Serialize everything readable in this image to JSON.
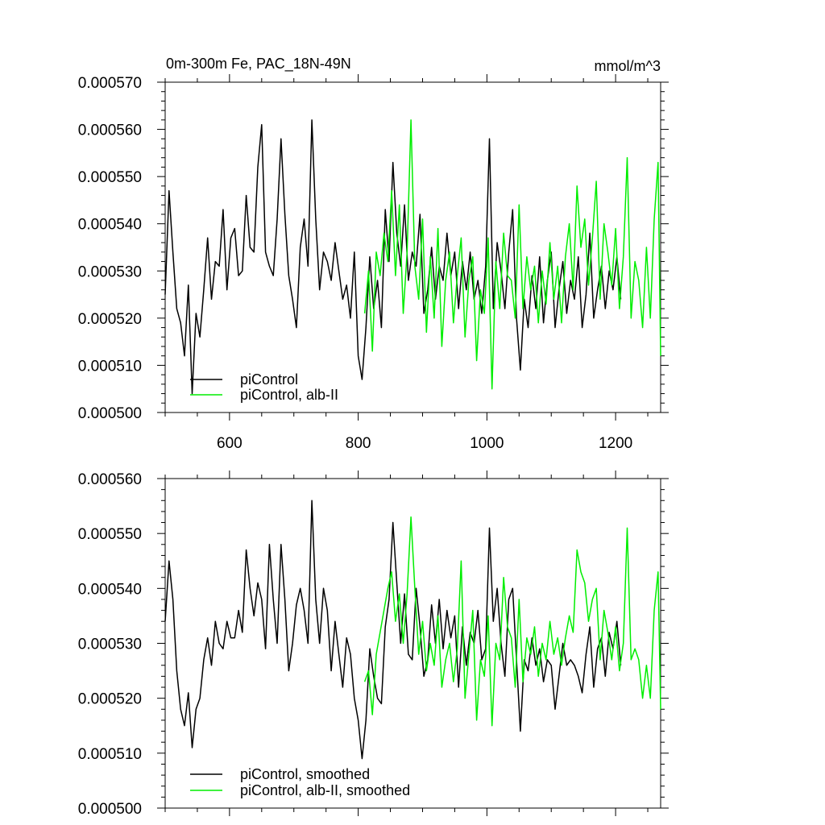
{
  "chart_data": [
    {
      "type": "line",
      "title": "0m-300m Fe, PAC_18N-49N",
      "units": "mmol/m^3",
      "xlim": [
        500,
        1270
      ],
      "ylim": [
        0.0005,
        0.00057
      ],
      "xticks": [
        600,
        800,
        1000,
        1200
      ],
      "xtick_labels": [
        "600",
        "800",
        "1000",
        "1200"
      ],
      "yticks": [
        0.0005,
        0.00051,
        0.00052,
        0.00053,
        0.00054,
        0.00055,
        0.00056,
        0.00057
      ],
      "ytick_labels": [
        "0.000500",
        "0.000510",
        "0.000520",
        "0.000530",
        "0.000540",
        "0.000550",
        "0.000560",
        "0.000570"
      ],
      "legend_position": "bottom-left",
      "series": [
        {
          "name": "piControl",
          "color": "#000000",
          "x": [
            500,
            506,
            512,
            518,
            524,
            530,
            536,
            542,
            548,
            554,
            560,
            566,
            572,
            578,
            584,
            590,
            596,
            602,
            608,
            614,
            620,
            626,
            632,
            638,
            644,
            650,
            656,
            662,
            668,
            674,
            680,
            686,
            692,
            698,
            704,
            710,
            716,
            722,
            728,
            734,
            740,
            746,
            752,
            758,
            764,
            770,
            776,
            782,
            788,
            794,
            800,
            806,
            812,
            818,
            824,
            830,
            836,
            842,
            848,
            854,
            860,
            866,
            872,
            878,
            884,
            890,
            896,
            902,
            908,
            914,
            920,
            926,
            932,
            938,
            944,
            950,
            956,
            962,
            968,
            974,
            980,
            986,
            992,
            998,
            1004,
            1010,
            1016,
            1022,
            1028,
            1034,
            1040,
            1046,
            1052,
            1058,
            1064,
            1070,
            1076,
            1082,
            1088,
            1094,
            1100,
            1106,
            1112,
            1118,
            1124,
            1130,
            1136,
            1142,
            1148,
            1154,
            1160,
            1166,
            1172,
            1178,
            1184,
            1190,
            1196,
            1202,
            1208
          ],
          "y": [
            0.000525,
            0.000547,
            0.000534,
            0.000522,
            0.000519,
            0.000512,
            0.000527,
            0.000504,
            0.000521,
            0.000516,
            0.000526,
            0.000537,
            0.000524,
            0.000532,
            0.000531,
            0.000543,
            0.000526,
            0.000537,
            0.000539,
            0.000529,
            0.00053,
            0.000546,
            0.000535,
            0.000534,
            0.000552,
            0.000561,
            0.000534,
            0.000531,
            0.000529,
            0.000541,
            0.000558,
            0.000542,
            0.000529,
            0.000524,
            0.000518,
            0.000535,
            0.000541,
            0.000531,
            0.000562,
            0.000541,
            0.000526,
            0.000534,
            0.000532,
            0.000528,
            0.000536,
            0.00053,
            0.000524,
            0.000527,
            0.00052,
            0.000534,
            0.000512,
            0.000507,
            0.000518,
            0.000533,
            0.000522,
            0.000528,
            0.000518,
            0.000543,
            0.000532,
            0.000553,
            0.000538,
            0.000531,
            0.000544,
            0.000528,
            0.000534,
            0.000531,
            0.000542,
            0.000521,
            0.000526,
            0.000535,
            0.000524,
            0.000531,
            0.000528,
            0.000538,
            0.000529,
            0.000534,
            0.000522,
            0.000532,
            0.000526,
            0.000534,
            0.000524,
            0.000528,
            0.000521,
            0.000531,
            0.000558,
            0.000522,
            0.000536,
            0.00053,
            0.000522,
            0.000534,
            0.000543,
            0.00052,
            0.000509,
            0.000524,
            0.000518,
            0.000529,
            0.000522,
            0.000533,
            0.000519,
            0.000528,
            0.000534,
            0.000518,
            0.000526,
            0.000532,
            0.000521,
            0.000528,
            0.000524,
            0.000533,
            0.000518,
            0.000525,
            0.000538,
            0.00052,
            0.000526,
            0.000531,
            0.000522,
            0.00053,
            0.000526,
            0.000533,
            0.000524
          ]
        },
        {
          "name": "piControl, alb-II",
          "color": "#00ee00",
          "x": [
            810,
            816,
            822,
            828,
            834,
            840,
            846,
            852,
            858,
            864,
            870,
            876,
            882,
            888,
            894,
            900,
            906,
            912,
            918,
            924,
            930,
            936,
            942,
            948,
            954,
            960,
            966,
            972,
            978,
            984,
            990,
            996,
            1002,
            1008,
            1014,
            1020,
            1026,
            1032,
            1038,
            1044,
            1050,
            1056,
            1062,
            1068,
            1074,
            1080,
            1086,
            1092,
            1098,
            1104,
            1110,
            1116,
            1122,
            1128,
            1134,
            1140,
            1146,
            1152,
            1158,
            1164,
            1170,
            1176,
            1182,
            1188,
            1194,
            1200,
            1206,
            1212,
            1218,
            1224,
            1230,
            1236,
            1242,
            1248,
            1254,
            1260,
            1266,
            1270
          ],
          "y": [
            0.000521,
            0.00053,
            0.000513,
            0.000534,
            0.000529,
            0.000538,
            0.000532,
            0.000547,
            0.000529,
            0.000544,
            0.000521,
            0.000534,
            0.000562,
            0.000531,
            0.000524,
            0.000541,
            0.000517,
            0.000533,
            0.00052,
            0.000539,
            0.000514,
            0.000528,
            0.000534,
            0.000519,
            0.000529,
            0.000537,
            0.000516,
            0.000528,
            0.000533,
            0.000511,
            0.000526,
            0.000521,
            0.000537,
            0.000505,
            0.000532,
            0.000522,
            0.000538,
            0.000529,
            0.000528,
            0.00052,
            0.000544,
            0.000522,
            0.000533,
            0.000526,
            0.000531,
            0.000519,
            0.00053,
            0.000523,
            0.000536,
            0.000524,
            0.000531,
            0.000519,
            0.000533,
            0.00054,
            0.000526,
            0.000548,
            0.000535,
            0.000541,
            0.000527,
            0.000537,
            0.000549,
            0.000524,
            0.00054,
            0.000534,
            0.000527,
            0.000539,
            0.000522,
            0.000533,
            0.000554,
            0.00052,
            0.000532,
            0.000528,
            0.000518,
            0.000535,
            0.00052,
            0.000541,
            0.000553,
            0.000512
          ]
        }
      ]
    },
    {
      "type": "line",
      "title": "",
      "xlim": [
        500,
        1270
      ],
      "ylim": [
        0.0005,
        0.00056
      ],
      "xticks": [
        600,
        800,
        1000,
        1200
      ],
      "xtick_labels": [],
      "yticks": [
        0.0005,
        0.00051,
        0.00052,
        0.00053,
        0.00054,
        0.00055,
        0.00056
      ],
      "ytick_labels": [
        "0.000500",
        "0.000510",
        "0.000520",
        "0.000530",
        "0.000540",
        "0.000550",
        "0.000560"
      ],
      "legend_position": "bottom-left",
      "series": [
        {
          "name": "piControl, smoothed",
          "color": "#000000",
          "x": [
            500,
            506,
            512,
            518,
            524,
            530,
            536,
            542,
            548,
            554,
            560,
            566,
            572,
            578,
            584,
            590,
            596,
            602,
            608,
            614,
            620,
            626,
            632,
            638,
            644,
            650,
            656,
            662,
            668,
            674,
            680,
            686,
            692,
            698,
            704,
            710,
            716,
            722,
            728,
            734,
            740,
            746,
            752,
            758,
            764,
            770,
            776,
            782,
            788,
            794,
            800,
            806,
            812,
            818,
            824,
            830,
            836,
            842,
            848,
            854,
            860,
            866,
            872,
            878,
            884,
            890,
            896,
            902,
            908,
            914,
            920,
            926,
            932,
            938,
            944,
            950,
            956,
            962,
            968,
            974,
            980,
            986,
            992,
            998,
            1004,
            1010,
            1016,
            1022,
            1028,
            1034,
            1040,
            1046,
            1052,
            1058,
            1064,
            1070,
            1076,
            1082,
            1088,
            1094,
            1100,
            1106,
            1112,
            1118,
            1124,
            1130,
            1136,
            1142,
            1148,
            1154,
            1160,
            1166,
            1172,
            1178,
            1184,
            1190,
            1196,
            1202,
            1208
          ],
          "y": [
            0.000534,
            0.000545,
            0.000538,
            0.000525,
            0.000518,
            0.000515,
            0.000521,
            0.000511,
            0.000518,
            0.00052,
            0.000527,
            0.000531,
            0.000526,
            0.000534,
            0.00053,
            0.000529,
            0.000534,
            0.000531,
            0.000531,
            0.000536,
            0.000532,
            0.000547,
            0.00054,
            0.000535,
            0.000541,
            0.000538,
            0.000529,
            0.000548,
            0.000538,
            0.00053,
            0.000548,
            0.000538,
            0.000525,
            0.00053,
            0.000537,
            0.00054,
            0.000536,
            0.00053,
            0.000556,
            0.000538,
            0.00053,
            0.00054,
            0.000536,
            0.000525,
            0.000534,
            0.000528,
            0.000522,
            0.000531,
            0.000528,
            0.00052,
            0.000516,
            0.000509,
            0.000516,
            0.000529,
            0.000524,
            0.00052,
            0.000519,
            0.000533,
            0.000538,
            0.000552,
            0.000541,
            0.00053,
            0.000539,
            0.000528,
            0.000527,
            0.00054,
            0.000533,
            0.000524,
            0.000527,
            0.000537,
            0.00053,
            0.000538,
            0.000529,
            0.000536,
            0.000531,
            0.000535,
            0.000522,
            0.000533,
            0.000526,
            0.000532,
            0.00053,
            0.000536,
            0.000527,
            0.000529,
            0.000551,
            0.000534,
            0.00054,
            0.00053,
            0.000524,
            0.000538,
            0.00054,
            0.000527,
            0.000514,
            0.000527,
            0.000525,
            0.000531,
            0.000526,
            0.000529,
            0.000523,
            0.000527,
            0.000526,
            0.000518,
            0.000524,
            0.00053,
            0.000526,
            0.000527,
            0.000526,
            0.000524,
            0.000521,
            0.000528,
            0.000533,
            0.000522,
            0.000529,
            0.000531,
            0.000524,
            0.000532,
            0.000529,
            0.000534,
            0.000526
          ]
        },
        {
          "name": "piControl, alb-II, smoothed",
          "color": "#00ee00",
          "x": [
            810,
            816,
            822,
            828,
            834,
            840,
            846,
            852,
            858,
            864,
            870,
            876,
            882,
            888,
            894,
            900,
            906,
            912,
            918,
            924,
            930,
            936,
            942,
            948,
            954,
            960,
            966,
            972,
            978,
            984,
            990,
            996,
            1002,
            1008,
            1014,
            1020,
            1026,
            1032,
            1038,
            1044,
            1050,
            1056,
            1062,
            1068,
            1074,
            1080,
            1086,
            1092,
            1098,
            1104,
            1110,
            1116,
            1122,
            1128,
            1134,
            1140,
            1146,
            1152,
            1158,
            1164,
            1170,
            1176,
            1182,
            1188,
            1194,
            1200,
            1206,
            1212,
            1218,
            1224,
            1230,
            1236,
            1242,
            1248,
            1254,
            1260,
            1266,
            1270
          ],
          "y": [
            0.000523,
            0.000525,
            0.000517,
            0.000528,
            0.000532,
            0.000536,
            0.00054,
            0.000543,
            0.000534,
            0.000539,
            0.00053,
            0.000539,
            0.000553,
            0.00054,
            0.000528,
            0.000534,
            0.000525,
            0.00053,
            0.000526,
            0.000535,
            0.000522,
            0.000527,
            0.00053,
            0.000523,
            0.000529,
            0.000545,
            0.00052,
            0.000528,
            0.000536,
            0.000516,
            0.000527,
            0.000524,
            0.000535,
            0.000515,
            0.00053,
            0.000527,
            0.000542,
            0.000533,
            0.000531,
            0.000522,
            0.000538,
            0.000523,
            0.000531,
            0.000528,
            0.000533,
            0.000524,
            0.00053,
            0.000527,
            0.000534,
            0.000528,
            0.000531,
            0.000526,
            0.000531,
            0.000535,
            0.000532,
            0.000547,
            0.000543,
            0.000541,
            0.000534,
            0.000538,
            0.00054,
            0.000527,
            0.000536,
            0.000532,
            0.000527,
            0.000533,
            0.000525,
            0.00053,
            0.000551,
            0.000527,
            0.000529,
            0.000527,
            0.00052,
            0.000526,
            0.00052,
            0.000536,
            0.000543,
            0.000518
          ]
        }
      ]
    }
  ]
}
